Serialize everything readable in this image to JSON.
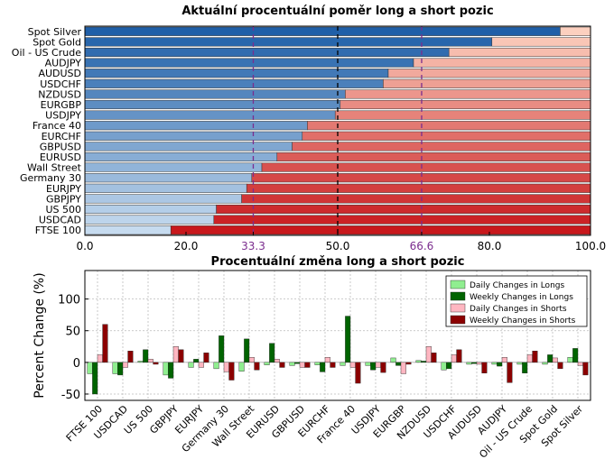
{
  "chart_data": [
    {
      "type": "bar",
      "orientation": "horizontal",
      "stacked": true,
      "title": "Aktuální procentuální poměr long a short pozic",
      "categories": [
        "Spot Silver",
        "Spot Gold",
        "Oil - US Crude",
        "AUDJPY",
        "AUDUSD",
        "USDCHF",
        "NZDUSD",
        "EURGBP",
        "USDJPY",
        "France 40",
        "EURCHF",
        "GBPUSD",
        "EURUSD",
        "Wall Street",
        "Germany 30",
        "EURJPY",
        "GBPJPY",
        "US 500",
        "USDCAD",
        "FTSE 100"
      ],
      "series": [
        {
          "name": "",
          "values": [
            94,
            80.5,
            72,
            65,
            60,
            59,
            51.5,
            50.5,
            49.5,
            44,
            43,
            41,
            38,
            35,
            33,
            32,
            31,
            26,
            25.5,
            17
          ]
        },
        {
          "name": "",
          "values": [
            6,
            19.5,
            28,
            35,
            40,
            41,
            48.5,
            49.5,
            50.5,
            56,
            57,
            59,
            62,
            65,
            67,
            68,
            69,
            74,
            74.5,
            83
          ]
        }
      ],
      "xlim": [
        0,
        100
      ],
      "xticks": [
        "0.0",
        "20.0",
        "33.3",
        "50.0",
        "66.6",
        "80.0",
        "100.0"
      ],
      "reference_lines": [
        33.3,
        50.0,
        66.6
      ],
      "colors": {
        "long_dark": "#1f5fa8",
        "long_light": "#c6dbef",
        "short_light": "#fcd0bf",
        "short_dark": "#c8181c",
        "ref_purple": "#7b2d8e",
        "ref_black": "#000000"
      }
    },
    {
      "type": "bar",
      "title": "Procentuální změna long a short pozic",
      "ylabel": "Percent Change (%)",
      "ylim": [
        -60,
        145
      ],
      "yticks": [
        "100",
        "50",
        "0",
        "-50"
      ],
      "categories": [
        "FTSE 100",
        "USDCAD",
        "US 500",
        "GBPJPY",
        "EURJPY",
        "Germany 30",
        "Wall Street",
        "EURUSD",
        "GBPUSD",
        "EURCHF",
        "France 40",
        "USDJPY",
        "EURGBP",
        "NZDUSD",
        "USDCHF",
        "AUDUSD",
        "AUDJPY",
        "Oil - US Crude",
        "Spot Gold",
        "Spot Silver"
      ],
      "series": [
        {
          "name": "Daily Changes in Longs",
          "color": "#90ee90",
          "values": [
            -18,
            -18,
            2,
            -20,
            -8,
            -10,
            -14,
            -4,
            -5,
            -4,
            -5,
            -5,
            7,
            3,
            -12,
            -3,
            -3,
            -3,
            -3,
            8
          ]
        },
        {
          "name": "Weekly Changes in Longs",
          "color": "#006400",
          "values": [
            -50,
            -20,
            20,
            -25,
            5,
            42,
            37,
            30,
            -2,
            -15,
            73,
            -12,
            -5,
            2,
            -10,
            -2,
            -6,
            -17,
            12,
            22
          ]
        },
        {
          "name": "Daily Changes in Shorts",
          "color": "#ffb6c1",
          "values": [
            12,
            -8,
            5,
            25,
            -8,
            -15,
            8,
            5,
            -8,
            8,
            -8,
            -8,
            -18,
            25,
            12,
            -3,
            8,
            12,
            7,
            -5
          ]
        },
        {
          "name": "Weekly Changes in Shorts",
          "color": "#8b0000",
          "values": [
            60,
            18,
            -3,
            20,
            15,
            -28,
            -12,
            -8,
            -8,
            -8,
            -33,
            -16,
            -3,
            15,
            20,
            -17,
            -32,
            18,
            -10,
            -20
          ]
        }
      ],
      "legend_position": "top-right",
      "grid": true
    }
  ]
}
